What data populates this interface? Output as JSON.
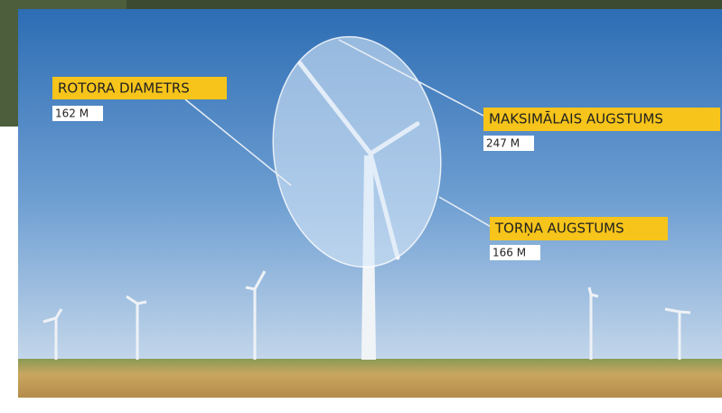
{
  "labels": [
    {
      "title": "ROTORA DIAMETRS",
      "value": "162 M"
    },
    {
      "title": "MAKSIMĀLAIS AUGSTUMS",
      "value": "247 M"
    },
    {
      "title": "TORŅA AUGSTUMS",
      "value": "166 M"
    }
  ]
}
